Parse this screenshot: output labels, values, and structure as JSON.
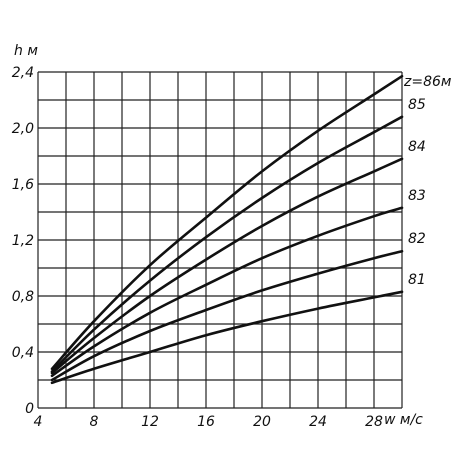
{
  "chart_data": {
    "type": "line",
    "title": "",
    "ylabel": "h м",
    "xlabel": "w м/с",
    "xlim": [
      4,
      30
    ],
    "ylim": [
      0,
      2.4
    ],
    "x_ticks": [
      "4",
      "8",
      "12",
      "16",
      "20",
      "24",
      "28"
    ],
    "y_ticks": [
      "0",
      "0,4",
      "0,8",
      "1,2",
      "1,6",
      "2,0",
      "2,4"
    ],
    "grid": true,
    "series": [
      {
        "name": "z=86м",
        "points": [
          [
            5,
            0.28
          ],
          [
            8,
            0.62
          ],
          [
            12,
            1.02
          ],
          [
            16,
            1.36
          ],
          [
            20,
            1.69
          ],
          [
            24,
            1.98
          ],
          [
            28,
            2.24
          ],
          [
            30,
            2.37
          ]
        ]
      },
      {
        "name": "85",
        "points": [
          [
            5,
            0.26
          ],
          [
            8,
            0.56
          ],
          [
            12,
            0.91
          ],
          [
            16,
            1.22
          ],
          [
            20,
            1.5
          ],
          [
            24,
            1.75
          ],
          [
            28,
            1.97
          ],
          [
            30,
            2.08
          ]
        ]
      },
      {
        "name": "84",
        "points": [
          [
            5,
            0.25
          ],
          [
            8,
            0.5
          ],
          [
            12,
            0.8
          ],
          [
            16,
            1.06
          ],
          [
            20,
            1.3
          ],
          [
            24,
            1.51
          ],
          [
            28,
            1.69
          ],
          [
            30,
            1.78
          ]
        ]
      },
      {
        "name": "83",
        "points": [
          [
            5,
            0.23
          ],
          [
            8,
            0.44
          ],
          [
            12,
            0.68
          ],
          [
            16,
            0.88
          ],
          [
            20,
            1.07
          ],
          [
            24,
            1.23
          ],
          [
            28,
            1.37
          ],
          [
            30,
            1.43
          ]
        ]
      },
      {
        "name": "82",
        "points": [
          [
            5,
            0.2
          ],
          [
            8,
            0.37
          ],
          [
            12,
            0.55
          ],
          [
            16,
            0.7
          ],
          [
            20,
            0.84
          ],
          [
            24,
            0.96
          ],
          [
            28,
            1.07
          ],
          [
            30,
            1.12
          ]
        ]
      },
      {
        "name": "81",
        "points": [
          [
            5,
            0.18
          ],
          [
            8,
            0.28
          ],
          [
            12,
            0.4
          ],
          [
            16,
            0.52
          ],
          [
            20,
            0.62
          ],
          [
            24,
            0.71
          ],
          [
            28,
            0.79
          ],
          [
            30,
            0.83
          ]
        ]
      }
    ]
  }
}
